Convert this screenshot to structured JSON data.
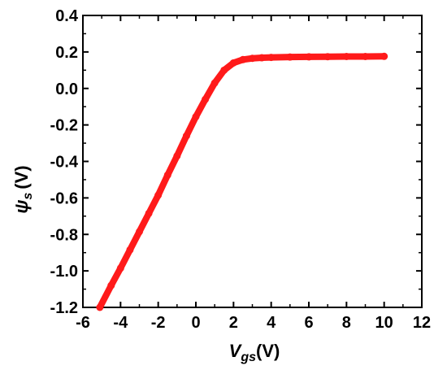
{
  "chart_data": {
    "type": "line",
    "title": "",
    "xlabel": {
      "symbol": "V",
      "subscript": "gs",
      "unit": "(V)"
    },
    "ylabel": {
      "symbol": "ψ",
      "subscript": "s",
      "unit": "(V)"
    },
    "xlim": [
      -6,
      12
    ],
    "ylim": [
      -1.2,
      0.4
    ],
    "xticks": [
      -6,
      -4,
      -2,
      0,
      2,
      4,
      6,
      8,
      10,
      12
    ],
    "yticks": [
      -1.2,
      -1.0,
      -0.8,
      -0.6,
      -0.4,
      -0.2,
      0.0,
      0.2,
      0.4
    ],
    "xtick_labels": [
      "-6",
      "-4",
      "-2",
      "0",
      "2",
      "4",
      "6",
      "8",
      "10",
      "12"
    ],
    "ytick_labels": [
      "-1.2",
      "-1.0",
      "-0.8",
      "-0.6",
      "-0.4",
      "-0.2",
      "0.0",
      "0.2",
      "0.4"
    ],
    "grid": false,
    "legend": "none",
    "series": [
      {
        "color": "#ff1a1a",
        "x": [
          -5.1,
          -4.5,
          -4.0,
          -3.5,
          -3.0,
          -2.5,
          -2.0,
          -1.5,
          -1.0,
          -0.5,
          0.0,
          0.5,
          1.0,
          1.5,
          2.0,
          2.5,
          3.0,
          3.5,
          4.0,
          5.0,
          6.0,
          7.0,
          8.0,
          9.0,
          10.0
        ],
        "y": [
          -1.2,
          -1.08,
          -0.985,
          -0.885,
          -0.785,
          -0.685,
          -0.585,
          -0.475,
          -0.37,
          -0.26,
          -0.155,
          -0.06,
          0.03,
          0.1,
          0.14,
          0.158,
          0.165,
          0.168,
          0.17,
          0.172,
          0.173,
          0.174,
          0.175,
          0.175,
          0.176
        ]
      }
    ]
  }
}
